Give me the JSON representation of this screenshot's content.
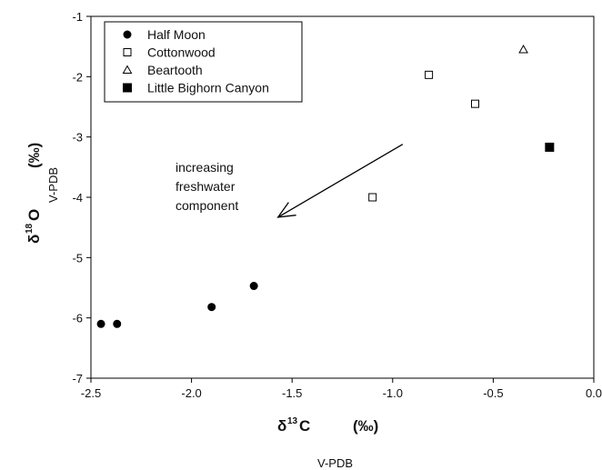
{
  "chart_data": {
    "type": "scatter",
    "xlim": [
      -2.5,
      0.0
    ],
    "ylim": [
      -7,
      -1
    ],
    "x_ticks": [
      "-2.5",
      "-2.0",
      "-1.5",
      "-1.0",
      "-0.5",
      "0.0"
    ],
    "y_ticks": [
      "-1",
      "-2",
      "-3",
      "-4",
      "-5",
      "-6",
      "-7"
    ],
    "grid": false,
    "legend_position": "top-left",
    "xlabel": {
      "delta": "δ",
      "sup": "13",
      "letter": "C",
      "sub": "V-PDB",
      "unit": "(‰)"
    },
    "ylabel": {
      "delta": "δ",
      "sup": "18",
      "letter": "O",
      "sub": "V-PDB",
      "unit": "(‰)"
    },
    "annotation": {
      "lines": [
        "increasing",
        "freshwater",
        "component"
      ],
      "arrow_from": [
        -0.95,
        -3.12
      ],
      "arrow_to": [
        -1.57,
        -4.33
      ]
    },
    "series": [
      {
        "name": "Half Moon",
        "marker": "filled-circle",
        "points": [
          [
            -2.45,
            -6.1
          ],
          [
            -2.37,
            -6.1
          ],
          [
            -1.9,
            -5.82
          ],
          [
            -1.69,
            -5.47
          ]
        ]
      },
      {
        "name": "Cottonwood",
        "marker": "open-square",
        "points": [
          [
            -0.82,
            -1.97
          ],
          [
            -0.59,
            -2.45
          ],
          [
            -1.1,
            -4.0
          ]
        ]
      },
      {
        "name": "Beartooth",
        "marker": "open-triangle",
        "points": [
          [
            -0.35,
            -1.55
          ]
        ]
      },
      {
        "name": "Little Bighorn Canyon",
        "marker": "filled-square",
        "points": [
          [
            -0.22,
            -3.17
          ]
        ]
      }
    ]
  }
}
